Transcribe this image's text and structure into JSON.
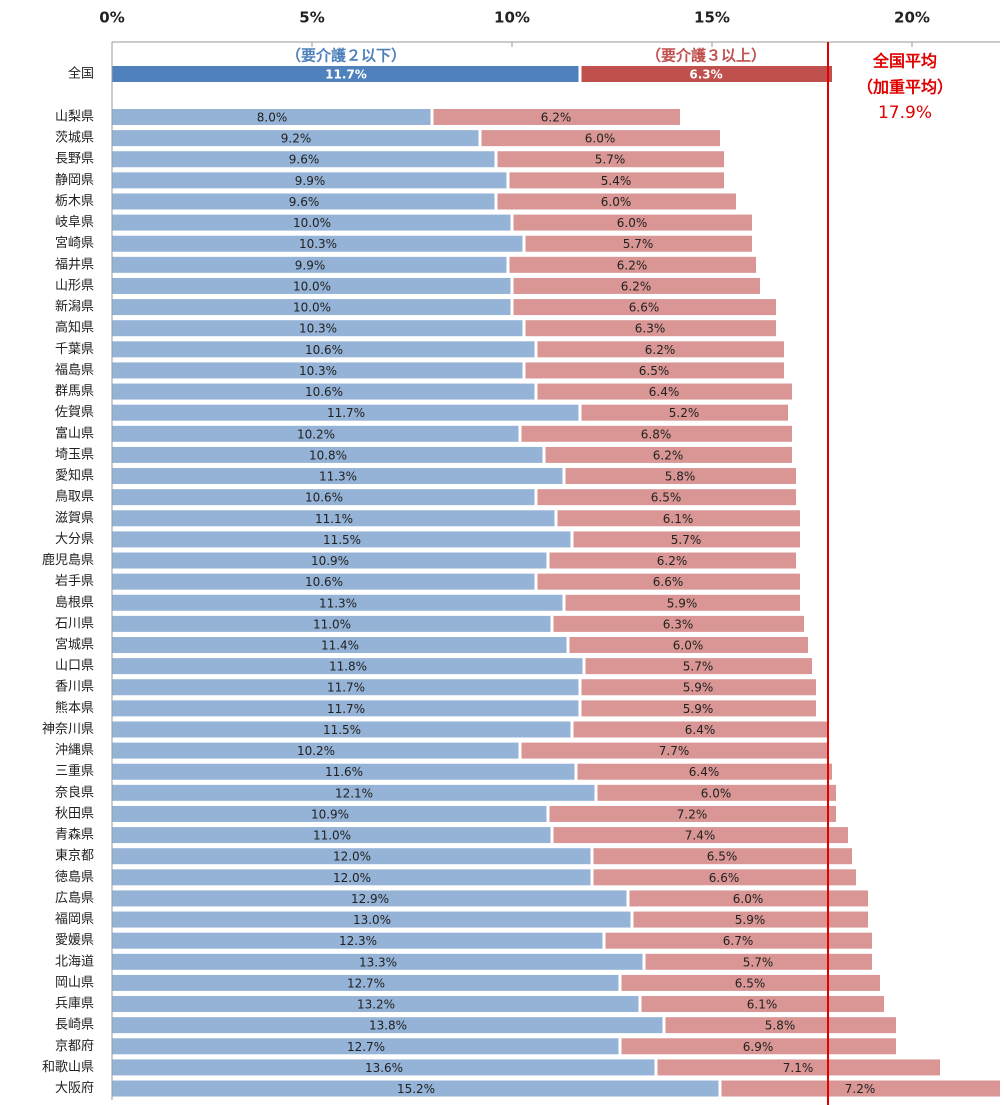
{
  "chart_data": {
    "type": "stacked-barh",
    "categories": [
      "全国",
      "山梨県",
      "茨城県",
      "長野県",
      "静岡県",
      "栃木県",
      "岐阜県",
      "宮崎県",
      "福井県",
      "山形県",
      "新潟県",
      "高知県",
      "千葉県",
      "福島県",
      "群馬県",
      "佐賀県",
      "富山県",
      "埼玉県",
      "愛知県",
      "鳥取県",
      "滋賀県",
      "大分県",
      "鹿児島県",
      "岩手県",
      "島根県",
      "石川県",
      "宮城県",
      "山口県",
      "香川県",
      "熊本県",
      "神奈川県",
      "沖縄県",
      "三重県",
      "奈良県",
      "秋田県",
      "青森県",
      "東京都",
      "徳島県",
      "広島県",
      "福岡県",
      "愛媛県",
      "北海道",
      "岡山県",
      "兵庫県",
      "長崎県",
      "京都府",
      "和歌山県",
      "大阪府"
    ],
    "series": [
      {
        "name": "（要介護２以下）",
        "color": "#95b3d7",
        "highlight_color": "#4f81bd",
        "values": [
          11.7,
          8.0,
          9.2,
          9.6,
          9.9,
          9.6,
          10.0,
          10.3,
          9.9,
          10.0,
          10.0,
          10.3,
          10.6,
          10.3,
          10.6,
          11.7,
          10.2,
          10.8,
          11.3,
          10.6,
          11.1,
          11.5,
          10.9,
          10.6,
          11.3,
          11.0,
          11.4,
          11.8,
          11.7,
          11.7,
          11.5,
          10.2,
          11.6,
          12.1,
          10.9,
          11.0,
          12.0,
          12.0,
          12.9,
          13.0,
          12.3,
          13.3,
          12.7,
          13.2,
          13.8,
          12.7,
          13.6,
          15.2
        ],
        "value_labels": [
          "11.7%",
          "8.0%",
          "9.2%",
          "9.6%",
          "9.9%",
          "9.6%",
          "10.0%",
          "10.3%",
          "9.9%",
          "10.0%",
          "10.0%",
          "10.3%",
          "10.6%",
          "10.3%",
          "10.6%",
          "11.7%",
          "10.2%",
          "10.8%",
          "11.3%",
          "10.6%",
          "11.1%",
          "11.5%",
          "10.9%",
          "10.6%",
          "11.3%",
          "11.0%",
          "11.4%",
          "11.8%",
          "11.7%",
          "11.7%",
          "11.5%",
          "10.2%",
          "11.6%",
          "12.1%",
          "10.9%",
          "11.0%",
          "12.0%",
          "12.0%",
          "12.9%",
          "13.0%",
          "12.3%",
          "13.3%",
          "12.7%",
          "13.2%",
          "13.8%",
          "12.7%",
          "13.6%",
          "15.2%"
        ]
      },
      {
        "name": "（要介護３以上）",
        "color": "#d99694",
        "highlight_color": "#c0504d",
        "values": [
          6.3,
          6.2,
          6.0,
          5.7,
          5.4,
          6.0,
          6.0,
          5.7,
          6.2,
          6.2,
          6.6,
          6.3,
          6.2,
          6.5,
          6.4,
          5.2,
          6.8,
          6.2,
          5.8,
          6.5,
          6.1,
          5.7,
          6.2,
          6.6,
          5.9,
          6.3,
          6.0,
          5.7,
          5.9,
          5.9,
          6.4,
          7.7,
          6.4,
          6.0,
          7.2,
          7.4,
          6.5,
          6.6,
          6.0,
          5.9,
          6.7,
          5.7,
          6.5,
          6.1,
          5.8,
          6.9,
          7.1,
          7.2
        ],
        "value_labels": [
          "6.3%",
          "6.2%",
          "6.0%",
          "5.7%",
          "5.4%",
          "6.0%",
          "6.0%",
          "5.7%",
          "6.2%",
          "6.2%",
          "6.6%",
          "6.3%",
          "6.2%",
          "6.5%",
          "6.4%",
          "5.2%",
          "6.8%",
          "6.2%",
          "5.8%",
          "6.5%",
          "6.1%",
          "5.7%",
          "6.2%",
          "6.6%",
          "5.9%",
          "6.3%",
          "6.0%",
          "5.7%",
          "5.9%",
          "5.9%",
          "6.4%",
          "7.7%",
          "6.4%",
          "6.0%",
          "7.2%",
          "7.4%",
          "6.5%",
          "6.6%",
          "6.0%",
          "5.9%",
          "6.7%",
          "5.7%",
          "6.5%",
          "6.1%",
          "5.8%",
          "6.9%",
          "7.1%",
          "7.2%"
        ]
      }
    ],
    "xlim": [
      0,
      22.2
    ],
    "xticks": [
      {
        "value": 0,
        "label": "0%"
      },
      {
        "value": 5,
        "label": "5%"
      },
      {
        "value": 10,
        "label": "10%"
      },
      {
        "value": 15,
        "label": "15%"
      },
      {
        "value": 20,
        "label": "20%"
      }
    ],
    "reference_line": {
      "value": 17.9,
      "label": "17.9%",
      "title": "全国平均",
      "subtitle": "（加重平均）",
      "color": "#e00000"
    }
  }
}
